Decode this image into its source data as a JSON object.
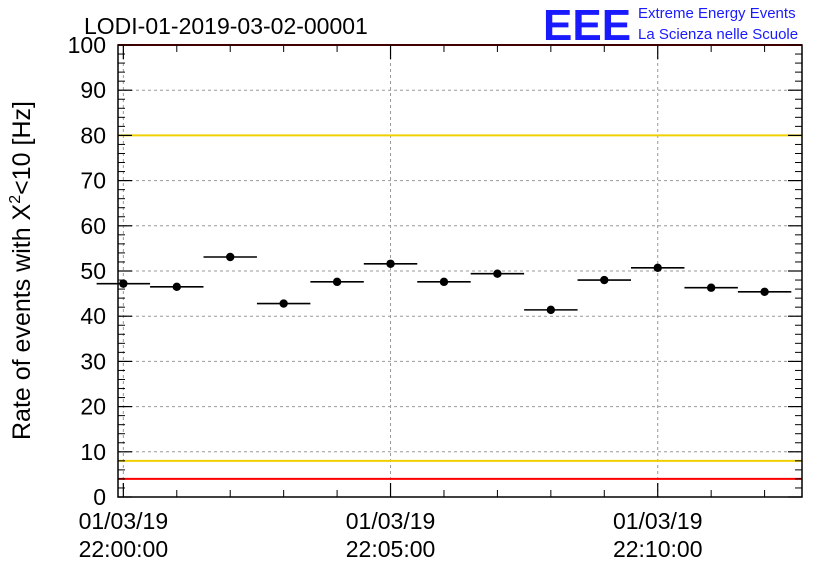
{
  "chart_data": {
    "type": "scatter",
    "title": "LODI-01-2019-03-02-00001",
    "ylabel": {
      "base": "Rate of events with X",
      "sup": "2",
      "tail": "<10 [Hz]"
    },
    "xlabel": "",
    "ylim": [
      0,
      100
    ],
    "y_ticks": [
      0,
      10,
      20,
      30,
      40,
      50,
      60,
      70,
      80,
      90,
      100
    ],
    "x_range_min": [
      -0.1,
      12.7
    ],
    "x_major_ticks": [
      {
        "pos_min": 0,
        "line1": "01/03/19",
        "line2": "22:00:00"
      },
      {
        "pos_min": 5,
        "line1": "01/03/19",
        "line2": "22:05:00"
      },
      {
        "pos_min": 10,
        "line1": "01/03/19",
        "line2": "22:10:00"
      }
    ],
    "grid": true,
    "reference_lines": [
      {
        "y": 80,
        "color": "#f0d000"
      },
      {
        "y": 8,
        "color": "#f0d000"
      },
      {
        "y": 4,
        "color": "#ff0000"
      },
      {
        "y": 100,
        "color": "#ff0000"
      }
    ],
    "series": [
      {
        "color": "#000000",
        "bin_width_min": 1,
        "x_min": [
          0,
          1,
          2,
          3,
          4,
          5,
          6,
          7,
          8,
          9,
          10,
          11,
          12
        ],
        "y": [
          47.2,
          46.5,
          53.1,
          42.8,
          47.6,
          51.6,
          47.6,
          49.4,
          41.4,
          48.0,
          50.7,
          46.3,
          45.4
        ]
      }
    ]
  },
  "logo": {
    "letters": "EEE",
    "line1": "Extreme Energy Events",
    "line2": "La Scienza nelle Scuole",
    "color": "#1a1aff"
  }
}
